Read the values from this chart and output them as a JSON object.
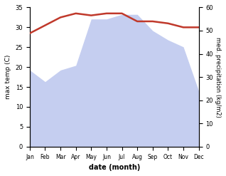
{
  "months": [
    "Jan",
    "Feb",
    "Mar",
    "Apr",
    "May",
    "Jun",
    "Jul",
    "Aug",
    "Sep",
    "Oct",
    "Nov",
    "Dec"
  ],
  "temperature": [
    28.5,
    30.5,
    32.5,
    33.5,
    33.0,
    33.5,
    33.5,
    31.5,
    31.5,
    31.0,
    30.0,
    30.0
  ],
  "precipitation": [
    33,
    28,
    33,
    35,
    55,
    55,
    57,
    57,
    50,
    46,
    43,
    24
  ],
  "temp_color": "#c0392b",
  "precip_fill_color": "#c5cef0",
  "ylim_temp": [
    0,
    35
  ],
  "ylim_precip": [
    0,
    60
  ],
  "xlabel": "date (month)",
  "ylabel_left": "max temp (C)",
  "ylabel_right": "med. precipitation (kg/m2)",
  "bg_color": "#ffffff",
  "temp_linewidth": 1.8
}
